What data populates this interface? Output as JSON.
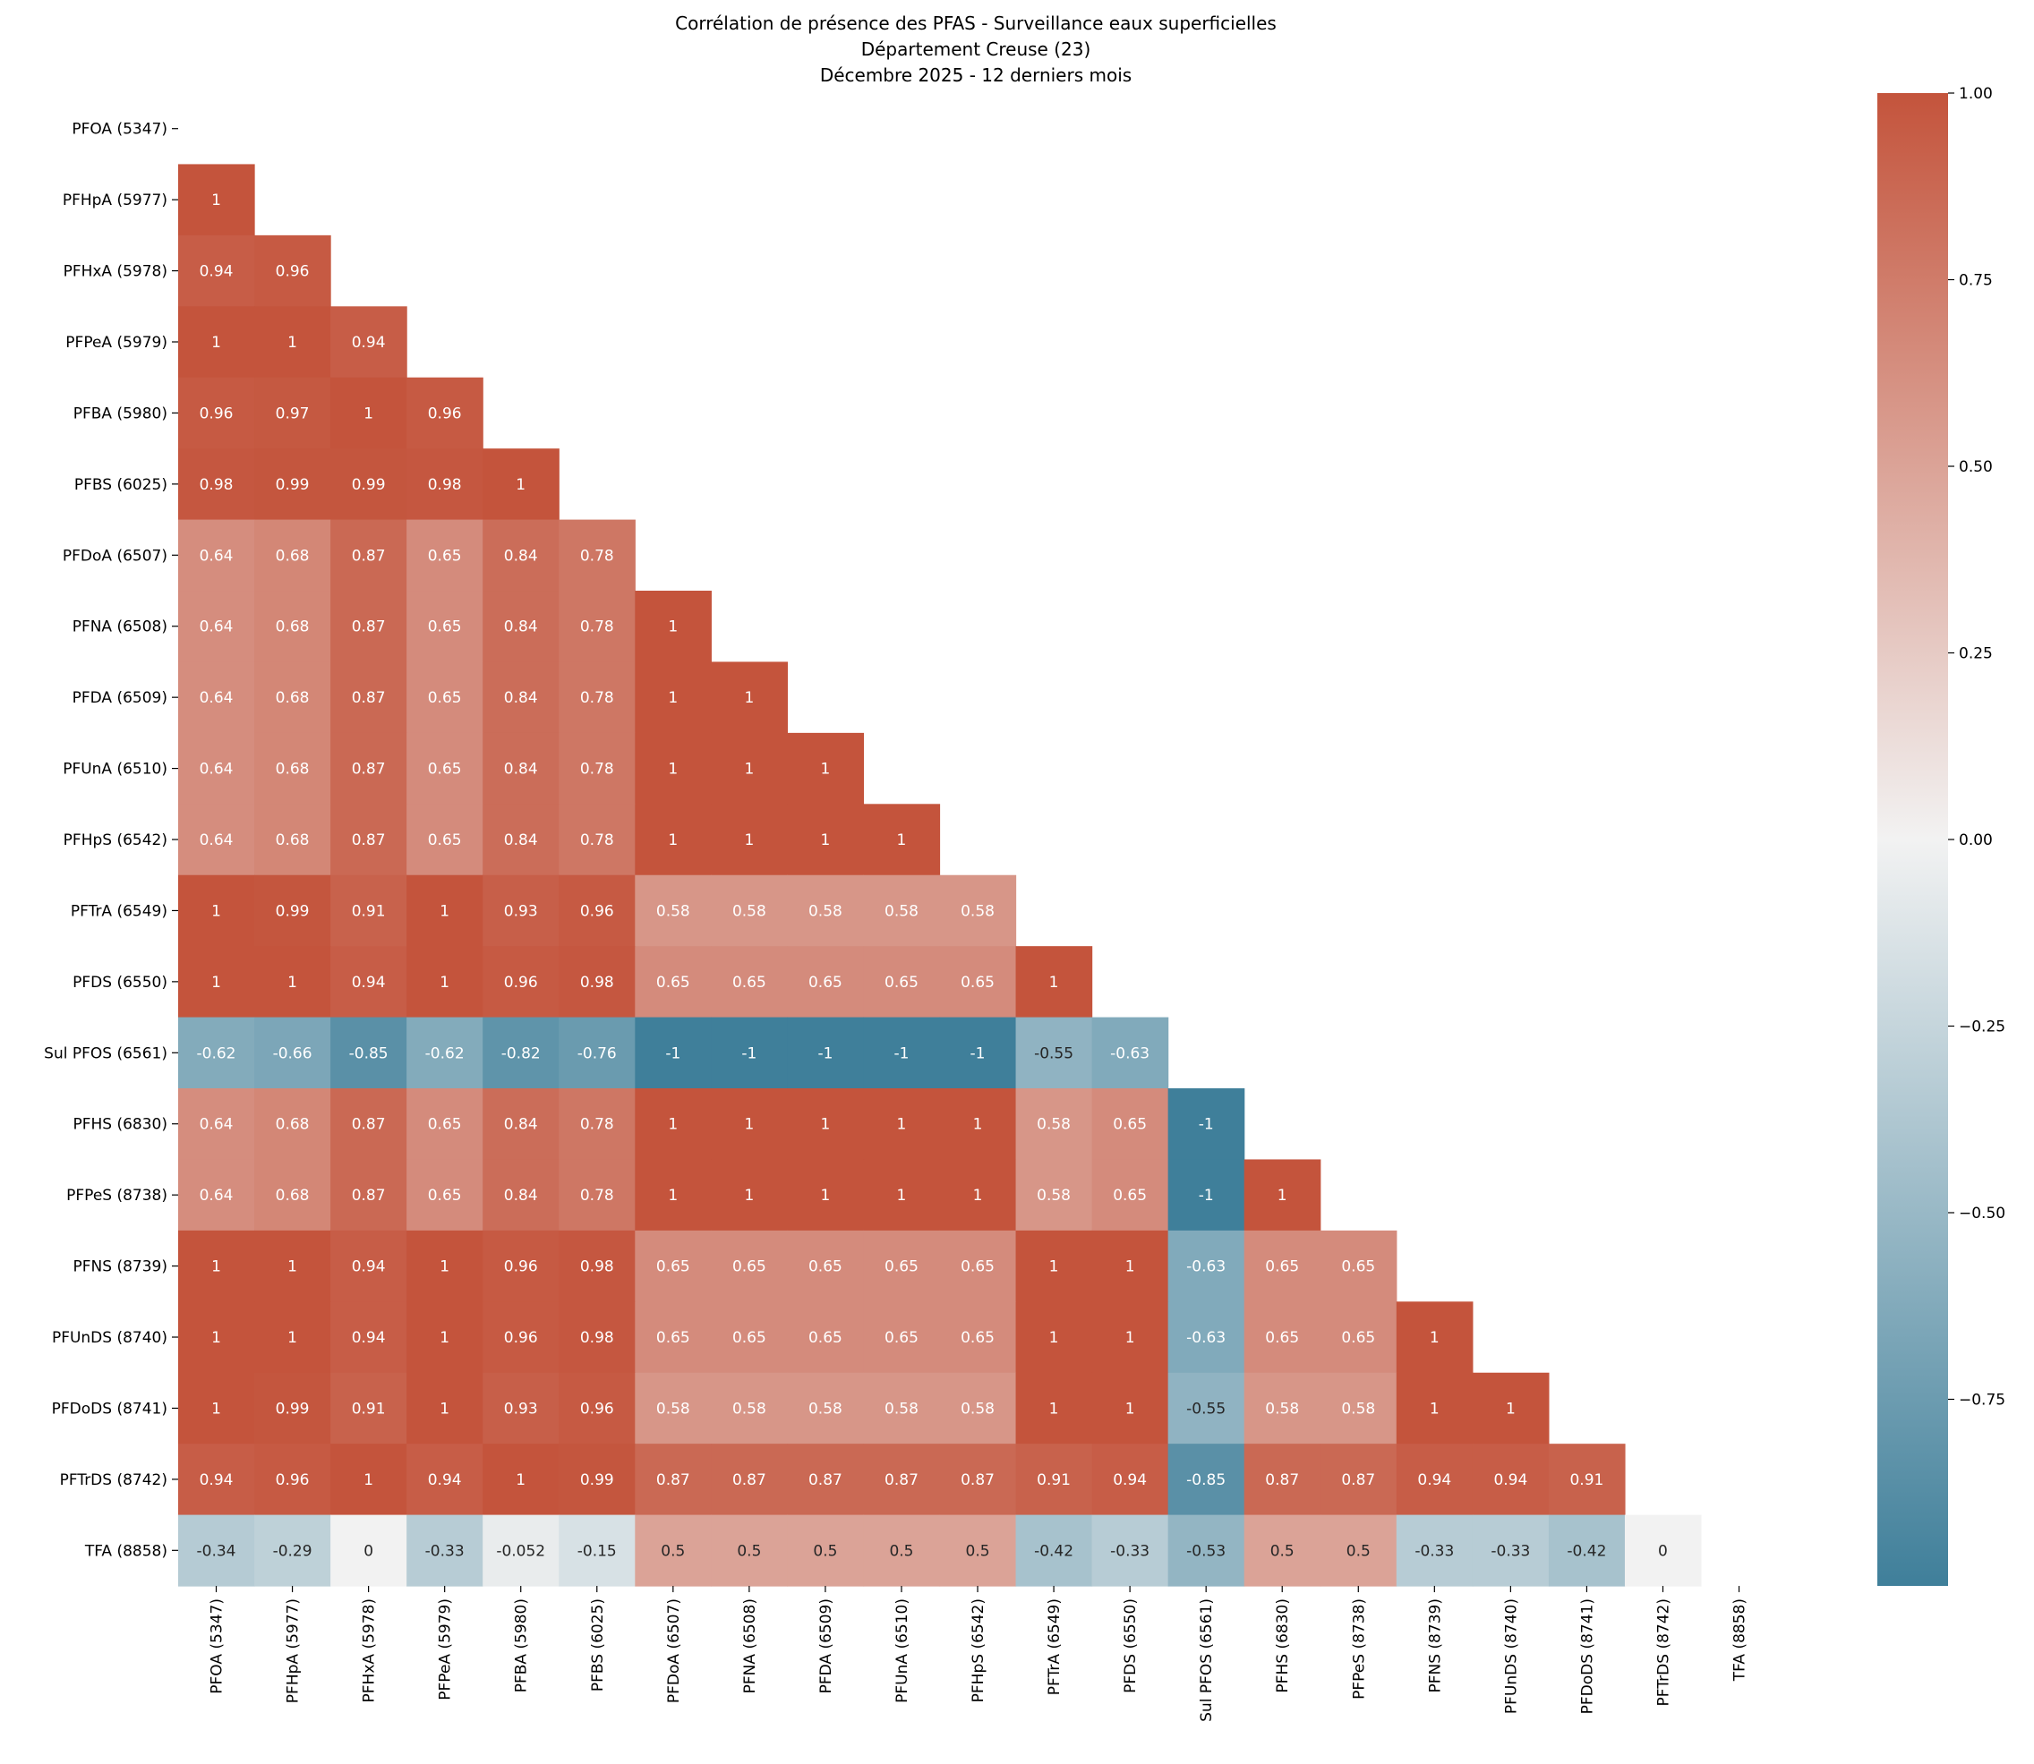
{
  "chart_data": {
    "type": "heatmap",
    "title": [
      "Corrélation de présence des PFAS - Surveillance eaux superficielles",
      "Département Creuse (23)",
      "Décembre 2025 - 12 derniers mois"
    ],
    "mask": "upper triangle including diagonal",
    "labels": [
      "PFOA (5347)",
      "PFHpA (5977)",
      "PFHxA (5978)",
      "PFPeA (5979)",
      "PFBA (5980)",
      "PFBS (6025)",
      "PFDoA (6507)",
      "PFNA (6508)",
      "PFDA (6509)",
      "PFUnA (6510)",
      "PFHpS (6542)",
      "PFTrA (6549)",
      "PFDS (6550)",
      "Sul PFOS (6561)",
      "PFHS (6830)",
      "PFPeS (8738)",
      "PFNS (8739)",
      "PFUnDS (8740)",
      "PFDoDS (8741)",
      "PFTrDS (8742)",
      "TFA (8858)"
    ],
    "lower_triangle_rows": [
      [],
      [
        "1"
      ],
      [
        "0.94",
        "0.96"
      ],
      [
        "1",
        "1",
        "0.94"
      ],
      [
        "0.96",
        "0.97",
        "1",
        "0.96"
      ],
      [
        "0.98",
        "0.99",
        "0.99",
        "0.98",
        "1"
      ],
      [
        "0.64",
        "0.68",
        "0.87",
        "0.65",
        "0.84",
        "0.78"
      ],
      [
        "0.64",
        "0.68",
        "0.87",
        "0.65",
        "0.84",
        "0.78",
        "1"
      ],
      [
        "0.64",
        "0.68",
        "0.87",
        "0.65",
        "0.84",
        "0.78",
        "1",
        "1"
      ],
      [
        "0.64",
        "0.68",
        "0.87",
        "0.65",
        "0.84",
        "0.78",
        "1",
        "1",
        "1"
      ],
      [
        "0.64",
        "0.68",
        "0.87",
        "0.65",
        "0.84",
        "0.78",
        "1",
        "1",
        "1",
        "1"
      ],
      [
        "1",
        "0.99",
        "0.91",
        "1",
        "0.93",
        "0.96",
        "0.58",
        "0.58",
        "0.58",
        "0.58",
        "0.58"
      ],
      [
        "1",
        "1",
        "0.94",
        "1",
        "0.96",
        "0.98",
        "0.65",
        "0.65",
        "0.65",
        "0.65",
        "0.65",
        "1"
      ],
      [
        "-0.62",
        "-0.66",
        "-0.85",
        "-0.62",
        "-0.82",
        "-0.76",
        "-1",
        "-1",
        "-1",
        "-1",
        "-1",
        "-0.55",
        "-0.63"
      ],
      [
        "0.64",
        "0.68",
        "0.87",
        "0.65",
        "0.84",
        "0.78",
        "1",
        "1",
        "1",
        "1",
        "1",
        "0.58",
        "0.65",
        "-1"
      ],
      [
        "0.64",
        "0.68",
        "0.87",
        "0.65",
        "0.84",
        "0.78",
        "1",
        "1",
        "1",
        "1",
        "1",
        "0.58",
        "0.65",
        "-1",
        "1"
      ],
      [
        "1",
        "1",
        "0.94",
        "1",
        "0.96",
        "0.98",
        "0.65",
        "0.65",
        "0.65",
        "0.65",
        "0.65",
        "1",
        "1",
        "-0.63",
        "0.65",
        "0.65"
      ],
      [
        "1",
        "1",
        "0.94",
        "1",
        "0.96",
        "0.98",
        "0.65",
        "0.65",
        "0.65",
        "0.65",
        "0.65",
        "1",
        "1",
        "-0.63",
        "0.65",
        "0.65",
        "1"
      ],
      [
        "1",
        "0.99",
        "0.91",
        "1",
        "0.93",
        "0.96",
        "0.58",
        "0.58",
        "0.58",
        "0.58",
        "0.58",
        "1",
        "1",
        "-0.55",
        "0.58",
        "0.58",
        "1",
        "1"
      ],
      [
        "0.94",
        "0.96",
        "1",
        "0.94",
        "1",
        "0.99",
        "0.87",
        "0.87",
        "0.87",
        "0.87",
        "0.87",
        "0.91",
        "0.94",
        "-0.85",
        "0.87",
        "0.87",
        "0.94",
        "0.94",
        "0.91"
      ],
      [
        "-0.34",
        "-0.29",
        "0",
        "-0.33",
        "-0.052",
        "-0.15",
        "0.5",
        "0.5",
        "0.5",
        "0.5",
        "0.5",
        "-0.42",
        "-0.33",
        "-0.53",
        "0.5",
        "0.5",
        "-0.33",
        "-0.33",
        "-0.42",
        "0"
      ]
    ],
    "colorbar": {
      "range": [
        -1,
        1
      ],
      "ticks": [
        "1.00",
        "0.75",
        "0.50",
        "0.25",
        "0.00",
        "−0.25",
        "−0.50",
        "−0.75"
      ],
      "colors": {
        "negative": "#3f7f9a",
        "center": "#f2f2f2",
        "positive": "#c4543c"
      }
    }
  }
}
